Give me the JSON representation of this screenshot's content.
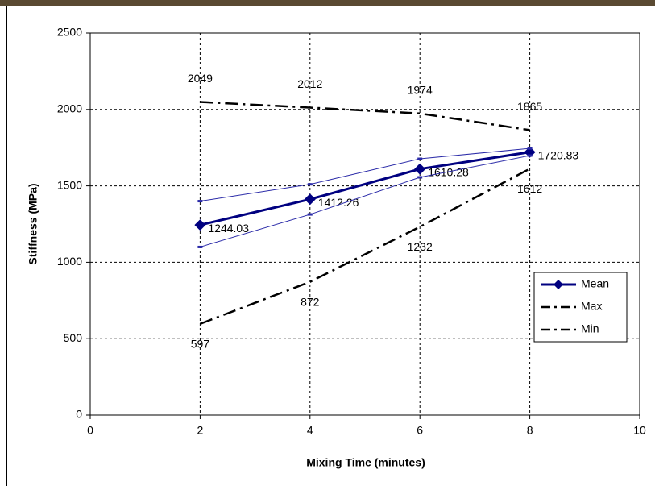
{
  "chart_data": {
    "type": "line",
    "x_label": "Mixing Time (minutes)",
    "y_label": "Stiffness (MPa)",
    "x": [
      2,
      4,
      6,
      8
    ],
    "series": [
      {
        "name": "Mean",
        "color": "#000080",
        "values": [
          1244.03,
          1412.26,
          1610.28,
          1720.83
        ],
        "marker": "diamond",
        "dash": "solid",
        "data_labels": true
      },
      {
        "name": "Max",
        "color": "#000000",
        "values": [
          2049,
          2012,
          1974,
          1865
        ],
        "marker": "none",
        "dash": "dashdot",
        "data_labels": true
      },
      {
        "name": "Min",
        "color": "#000000",
        "values": [
          597,
          872,
          1232,
          1612
        ],
        "marker": "none",
        "dash": "dashdot",
        "data_labels": true
      },
      {
        "color": "#2a2aa8",
        "values": [
          1400,
          1510,
          1677,
          1745
        ],
        "marker": "tick",
        "dash": "thin",
        "data_labels": false
      },
      {
        "color": "#2a2aa8",
        "values": [
          1100,
          1313,
          1556,
          1698
        ],
        "marker": "tick",
        "dash": "thin",
        "data_labels": false
      }
    ],
    "xlim": [
      0,
      10
    ],
    "xticks": [
      0,
      2,
      4,
      6,
      8,
      10
    ],
    "ylim": [
      0,
      2500
    ],
    "yticks": [
      0,
      500,
      1000,
      1500,
      2000,
      2500
    ],
    "grid": true,
    "legend": "right"
  }
}
